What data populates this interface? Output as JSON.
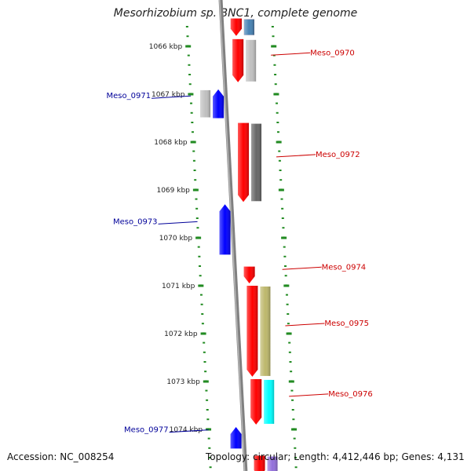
{
  "title": "Mesorhizobium sp. BNC1, complete genome",
  "footer": {
    "accession": "Accession: NC_008254",
    "topology": "Topology: circular; Length: 4,412,446 bp; Genes: 4,131"
  },
  "colors": {
    "forward_gene": "#ff0000",
    "reverse_gene": "#0000ff",
    "forward_label": "#cc0000",
    "reverse_label": "#000099",
    "backbone": "#808080",
    "ruler": "#228b22"
  },
  "kbp_markers": [
    {
      "kbp": 1066,
      "label": "1066 kbp"
    },
    {
      "kbp": 1067,
      "label": "1067 kbp"
    },
    {
      "kbp": 1068,
      "label": "1068 kbp"
    },
    {
      "kbp": 1069,
      "label": "1069 kbp"
    },
    {
      "kbp": 1070,
      "label": "1070 kbp"
    },
    {
      "kbp": 1071,
      "label": "1071 kbp"
    },
    {
      "kbp": 1072,
      "label": "1072 kbp"
    },
    {
      "kbp": 1073,
      "label": "1073 kbp"
    },
    {
      "kbp": 1074,
      "label": "1074 kbp"
    }
  ],
  "genes": [
    {
      "label": "",
      "strand": "forward",
      "start_kbp": 1065.42,
      "end_kbp": 1065.78,
      "cog_color": "#ff0000"
    },
    {
      "label": "",
      "strand": "forward",
      "start_kbp": 1065.42,
      "end_kbp": 1065.78,
      "cog_color": "#4682b4"
    },
    {
      "label": "Meso_0970",
      "strand": "forward",
      "start_kbp": 1065.85,
      "end_kbp": 1066.75,
      "cog_color": "#c0c0c0"
    },
    {
      "label": "Meso_0971",
      "strand": "reverse",
      "start_kbp": 1066.9,
      "end_kbp": 1067.5,
      "cog_color": "#c0c0c0"
    },
    {
      "label": "Meso_0972",
      "strand": "forward",
      "start_kbp": 1067.6,
      "end_kbp": 1069.25,
      "cog_color": "#666666"
    },
    {
      "label": "Meso_0973",
      "strand": "reverse",
      "start_kbp": 1069.3,
      "end_kbp": 1070.35,
      "cog_color": ""
    },
    {
      "label": "Meso_0974",
      "strand": "forward",
      "start_kbp": 1070.6,
      "end_kbp": 1070.95,
      "cog_color": ""
    },
    {
      "label": "Meso_0975",
      "strand": "forward",
      "start_kbp": 1071.0,
      "end_kbp": 1072.9,
      "cog_color": "#bdb76b"
    },
    {
      "label": "Meso_0976",
      "strand": "forward",
      "start_kbp": 1072.95,
      "end_kbp": 1073.9,
      "cog_color": "#00ffff"
    },
    {
      "label": "Meso_0977",
      "strand": "reverse",
      "start_kbp": 1073.95,
      "end_kbp": 1074.4,
      "cog_color": ""
    },
    {
      "label": "",
      "strand": "forward",
      "start_kbp": 1074.55,
      "end_kbp": 1075.0,
      "cog_color": "#9370db"
    }
  ]
}
